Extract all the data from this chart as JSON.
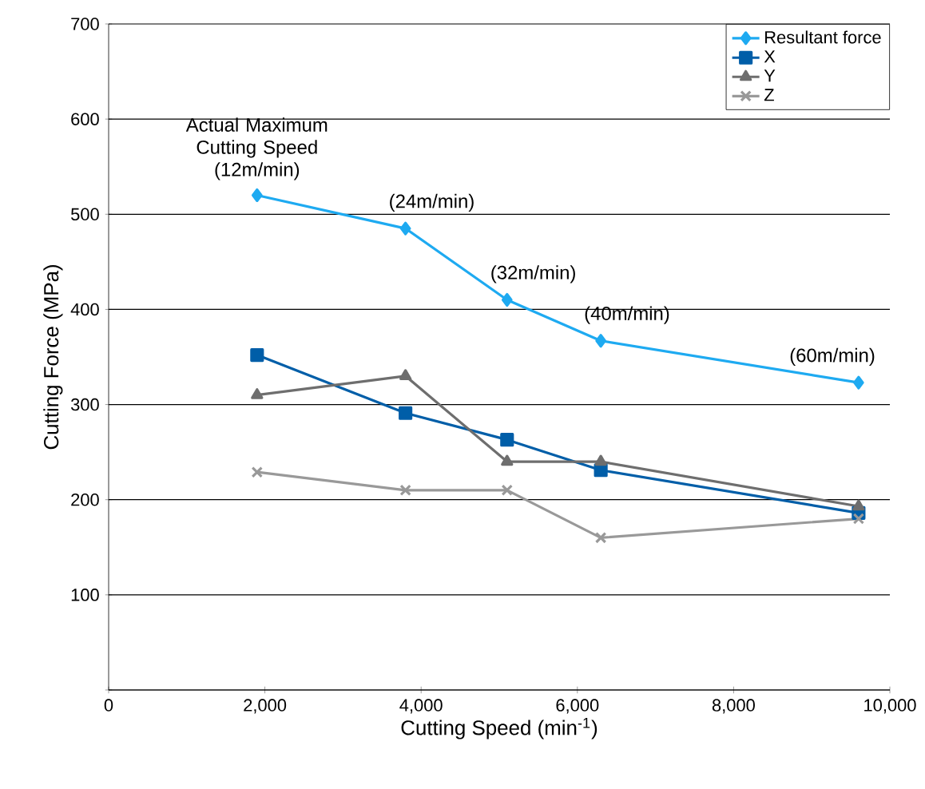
{
  "chart_data": {
    "type": "line",
    "xlabel": "Cutting Speed (min$^{-1}$)",
    "ylabel": "Cutting Force (MPa)",
    "x": [
      1900,
      3800,
      5100,
      6300,
      9600
    ],
    "series": [
      {
        "name": "Resultant force",
        "color": "#1eaaf1",
        "marker": "diamond",
        "values": [
          520,
          485,
          410,
          367,
          323
        ]
      },
      {
        "name": "X",
        "color": "#005ea8",
        "marker": "square",
        "values": [
          352,
          291,
          263,
          231,
          186
        ]
      },
      {
        "name": "Y",
        "color": "#6e6e6e",
        "marker": "triangle",
        "values": [
          310,
          330,
          240,
          240,
          193
        ]
      },
      {
        "name": "Z",
        "color": "#999999",
        "marker": "cross",
        "values": [
          229,
          210,
          210,
          160,
          180
        ]
      }
    ],
    "annotations": [
      {
        "text": "Actual Maximum Cutting Speed (12m/min)",
        "x": 1900,
        "y": 520
      },
      {
        "text": "(24m/min)",
        "x": 3800,
        "y": 485
      },
      {
        "text": "(32m/min)",
        "x": 5100,
        "y": 410
      },
      {
        "text": "(40m/min)",
        "x": 6300,
        "y": 367
      },
      {
        "text": "(60m/min)",
        "x": 9600,
        "y": 323
      }
    ],
    "xlim": [
      0,
      10000
    ],
    "ylim": [
      0,
      700
    ],
    "xticks": [
      0,
      {
        "value": 2000,
        "label": "2,000"
      },
      {
        "value": 4000,
        "label": "4,000"
      },
      {
        "value": 6000,
        "label": "6,000"
      },
      {
        "value": 8000,
        "label": "8,000"
      },
      {
        "value": 10000,
        "label": "10,000"
      }
    ],
    "yticks": [
      {
        "value": 0,
        "label": null
      },
      100,
      200,
      300,
      400,
      500,
      600,
      700
    ],
    "grid": "y",
    "legend": "top right",
    "line_style": "solid"
  }
}
